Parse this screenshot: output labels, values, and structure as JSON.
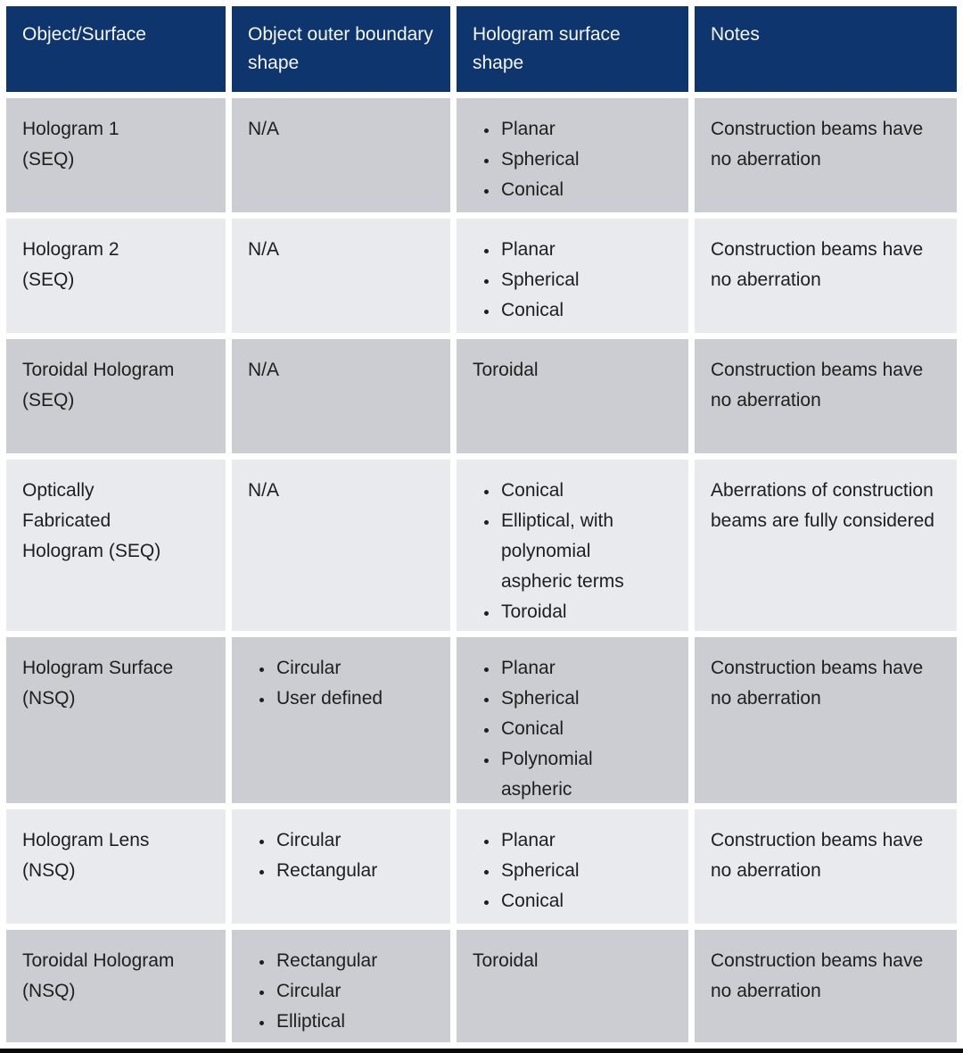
{
  "colors": {
    "header_bg": "#0f356e",
    "header_text": "#f4f6fa",
    "row_dark": "#cbcdd3",
    "row_light": "#e9eaee",
    "body_text": "#1e1e1e",
    "bottom_rule": "#0a0a0a"
  },
  "header": {
    "columns": [
      "Object/Surface",
      "Object outer boundary shape",
      "Hologram surface shape",
      "Notes"
    ]
  },
  "rows": [
    {
      "name": "Hologram 1 (SEQ)",
      "boundary": {
        "text": "N/A"
      },
      "surface": {
        "bullets": [
          "Planar",
          "Spherical",
          "Conical"
        ]
      },
      "notes": "Construction beams have no aberration"
    },
    {
      "name": "Hologram 2 (SEQ)",
      "boundary": {
        "text": "N/A"
      },
      "surface": {
        "bullets": [
          "Planar",
          "Spherical",
          "Conical"
        ]
      },
      "notes": "Construction beams have no aberration"
    },
    {
      "name": "Toroidal Hologram (SEQ)",
      "boundary": {
        "text": "N/A"
      },
      "surface": {
        "text": "Toroidal"
      },
      "notes": "Construction beams have no aberration"
    },
    {
      "name": "Optically Fabricated Hologram (SEQ)",
      "boundary": {
        "text": "N/A"
      },
      "surface": {
        "bullets": [
          "Conical",
          "Elliptical, with polynomial aspheric terms",
          "Toroidal"
        ]
      },
      "notes": "Aberrations of construction beams are fully considered"
    },
    {
      "name": "Hologram Surface (NSQ)",
      "boundary": {
        "bullets": [
          "Circular",
          "User defined"
        ]
      },
      "surface": {
        "bullets": [
          "Planar",
          "Spherical",
          "Conical",
          "Polynomial aspheric"
        ]
      },
      "notes": "Construction beams have no aberration"
    },
    {
      "name": "Hologram Lens (NSQ)",
      "boundary": {
        "bullets": [
          "Circular",
          "Rectangular"
        ]
      },
      "surface": {
        "bullets": [
          "Planar",
          "Spherical",
          "Conical"
        ]
      },
      "notes": "Construction beams have no aberration"
    },
    {
      "name": "Toroidal Hologram (NSQ)",
      "boundary": {
        "bullets": [
          "Rectangular",
          "Circular",
          "Elliptical"
        ]
      },
      "surface": {
        "text": "Toroidal"
      },
      "notes": "Construction beams have no aberration"
    }
  ]
}
